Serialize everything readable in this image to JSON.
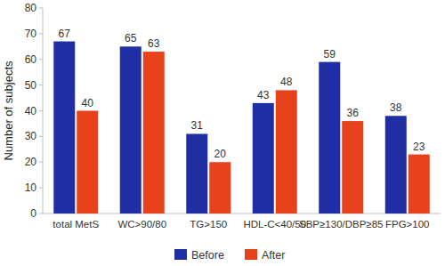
{
  "chart_data": {
    "type": "bar",
    "y_label": "Number of subjects",
    "categories": [
      "total MetS",
      "WC>90/80",
      "TG>150",
      "HDL-C<40/50",
      "SBP≥130/DBP≥85",
      "FPG>100"
    ],
    "series": [
      {
        "name": "Before",
        "color": "#1f2fa3",
        "values": [
          67,
          65,
          31,
          43,
          59,
          38
        ]
      },
      {
        "name": "After",
        "color": "#e8421c",
        "values": [
          40,
          63,
          20,
          48,
          36,
          23
        ]
      }
    ],
    "ylim": [
      0,
      80
    ],
    "yticks": [
      0,
      10,
      20,
      30,
      40,
      50,
      60,
      70,
      80
    ],
    "grid": false,
    "legend": "bottom",
    "data_labels": true
  }
}
